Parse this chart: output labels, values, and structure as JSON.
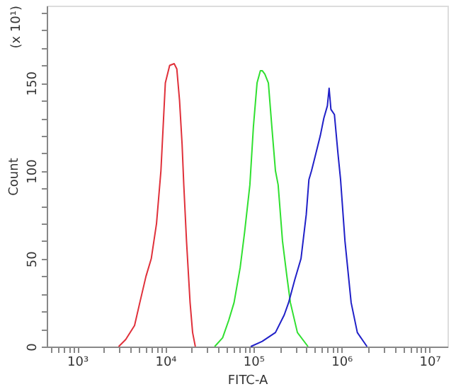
{
  "chart_data": {
    "type": "line",
    "xlabel": "FITC-A",
    "ylabel": "Count",
    "annotations": [
      "(x 10¹)"
    ],
    "log": "x",
    "grid": false,
    "legend": false,
    "marker": "none",
    "line_style": "solid",
    "xlim": [
      450,
      16000000
    ],
    "ylim": [
      0,
      194
    ],
    "xticks": [
      {
        "value": 500,
        "label": null
      },
      {
        "value": 600,
        "label": null
      },
      {
        "value": 700,
        "label": null
      },
      {
        "value": 800,
        "label": null
      },
      {
        "value": 900,
        "label": null
      },
      {
        "value": 1000,
        "label": "10³"
      },
      {
        "value": 2000,
        "label": null
      },
      {
        "value": 3000,
        "label": null
      },
      {
        "value": 4000,
        "label": null
      },
      {
        "value": 5000,
        "label": null
      },
      {
        "value": 6000,
        "label": null
      },
      {
        "value": 7000,
        "label": null
      },
      {
        "value": 8000,
        "label": null
      },
      {
        "value": 9000,
        "label": null
      },
      {
        "value": 10000,
        "label": "10⁴"
      },
      {
        "value": 20000,
        "label": null
      },
      {
        "value": 30000,
        "label": null
      },
      {
        "value": 40000,
        "label": null
      },
      {
        "value": 50000,
        "label": null
      },
      {
        "value": 60000,
        "label": null
      },
      {
        "value": 70000,
        "label": null
      },
      {
        "value": 80000,
        "label": null
      },
      {
        "value": 90000,
        "label": null
      },
      {
        "value": 100000,
        "label": "10⁵"
      },
      {
        "value": 200000,
        "label": null
      },
      {
        "value": 300000,
        "label": null
      },
      {
        "value": 400000,
        "label": null
      },
      {
        "value": 500000,
        "label": null
      },
      {
        "value": 600000,
        "label": null
      },
      {
        "value": 700000,
        "label": null
      },
      {
        "value": 800000,
        "label": null
      },
      {
        "value": 900000,
        "label": null
      },
      {
        "value": 1000000,
        "label": "10⁶"
      },
      {
        "value": 2000000,
        "label": null
      },
      {
        "value": 3000000,
        "label": null
      },
      {
        "value": 4000000,
        "label": null
      },
      {
        "value": 5000000,
        "label": null
      },
      {
        "value": 6000000,
        "label": null
      },
      {
        "value": 7000000,
        "label": null
      },
      {
        "value": 8000000,
        "label": null
      },
      {
        "value": 9000000,
        "label": null
      },
      {
        "value": 10000000,
        "label": "10⁷"
      }
    ],
    "yticks": [
      0,
      {
        "value": 10,
        "label": null
      },
      {
        "value": 20,
        "label": null
      },
      {
        "value": 30,
        "label": null
      },
      {
        "value": 40,
        "label": null
      },
      50,
      {
        "value": 60,
        "label": null
      },
      {
        "value": 70,
        "label": null
      },
      {
        "value": 80,
        "label": null
      },
      {
        "value": 90,
        "label": null
      },
      100,
      {
        "value": 110,
        "label": null
      },
      {
        "value": 120,
        "label": null
      },
      {
        "value": 130,
        "label": null
      },
      {
        "value": 140,
        "label": null
      },
      150,
      {
        "value": 160,
        "label": null
      },
      {
        "value": 170,
        "label": null
      },
      {
        "value": 180,
        "label": null
      },
      {
        "value": 190,
        "label": null
      }
    ],
    "series": [
      {
        "color": "#e0303a",
        "x": [
          2950,
          3550,
          4470,
          5130,
          6030,
          6920,
          7940,
          8910,
          9550,
          10000,
          11200,
          12600,
          13500,
          14500,
          15500,
          16200,
          17400,
          19100,
          20400,
          21900
        ],
        "values": [
          0,
          4,
          12,
          25,
          40,
          50,
          70,
          100,
          130,
          150,
          160,
          161,
          158,
          140,
          115,
          92,
          60,
          25,
          8,
          0
        ]
      },
      {
        "color": "#30e030",
        "x": [
          36300,
          44700,
          52500,
          60300,
          70800,
          79400,
          91200,
          100000,
          110000,
          120000,
          126000,
          135000,
          148000,
          162000,
          178000,
          191000,
          214000,
          240000,
          263000,
          316000,
          417000
        ],
        "values": [
          0,
          5,
          15,
          25,
          45,
          65,
          92,
          125,
          150,
          157,
          157,
          155,
          150,
          125,
          100,
          92,
          60,
          40,
          25,
          8,
          0
        ]
      },
      {
        "color": "#2020c8",
        "x": [
          93300,
          126000,
          178000,
          224000,
          251000,
          295000,
          347000,
          398000,
          427000,
          457000,
          501000,
          575000,
          631000,
          692000,
          724000,
          759000,
          832000,
          912000,
          977000,
          1096000,
          1288000,
          1514000,
          1950000
        ],
        "values": [
          0,
          3,
          8,
          18,
          25,
          38,
          50,
          75,
          95,
          100,
          108,
          120,
          130,
          137,
          147,
          135,
          132,
          110,
          95,
          60,
          25,
          8,
          0
        ]
      }
    ]
  }
}
